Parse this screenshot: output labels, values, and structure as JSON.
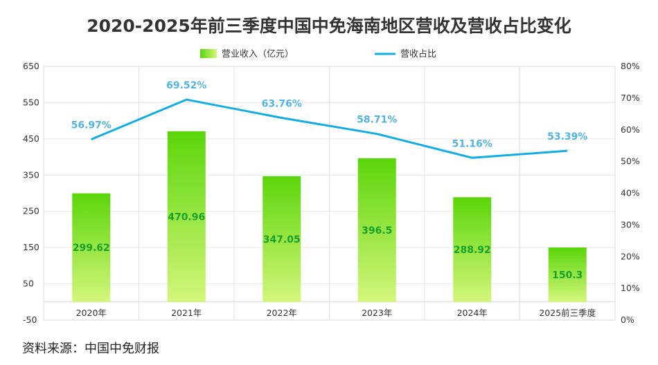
{
  "title": "2020-2025年前三季度中国中免海南地区营收及营收占比变化",
  "source": "资料来源：中国中免财报",
  "legend": {
    "bar": "营业收入（亿元）",
    "line": "营收占比"
  },
  "colors": {
    "bar_top": "#5ad60a",
    "bar_bottom": "#d4f67a",
    "line": "#10aee5",
    "bar_label": "#19a02a",
    "line_label": "#4fb4e4"
  },
  "chart_data": {
    "type": "bar+line",
    "categories": [
      "2020年",
      "2021年",
      "2022年",
      "2023年",
      "2024年",
      "2025前三季度"
    ],
    "series": [
      {
        "name": "营业收入（亿元）",
        "type": "bar",
        "axis": "left",
        "values": [
          299.62,
          470.96,
          347.05,
          396.5,
          288.92,
          150.3
        ]
      },
      {
        "name": "营收占比",
        "type": "line",
        "axis": "right",
        "values": [
          56.97,
          69.52,
          63.76,
          58.71,
          51.16,
          53.39
        ],
        "labels": [
          "56.97%",
          "69.52%",
          "63.76%",
          "58.71%",
          "51.16%",
          "53.39%"
        ]
      }
    ],
    "y_left": {
      "min": -50,
      "max": 650,
      "ticks": [
        "-50",
        "50",
        "150",
        "250",
        "350",
        "450",
        "550",
        "650"
      ],
      "tick_values": [
        -50,
        50,
        150,
        250,
        350,
        450,
        550,
        650
      ]
    },
    "y_right": {
      "min": 0,
      "max": 80,
      "ticks": [
        "0%",
        "10%",
        "20%",
        "30%",
        "40%",
        "50%",
        "60%",
        "70%",
        "80%"
      ],
      "tick_values": [
        0,
        10,
        20,
        30,
        40,
        50,
        60,
        70,
        80
      ]
    },
    "grid": true,
    "legend_position": "top-center"
  }
}
